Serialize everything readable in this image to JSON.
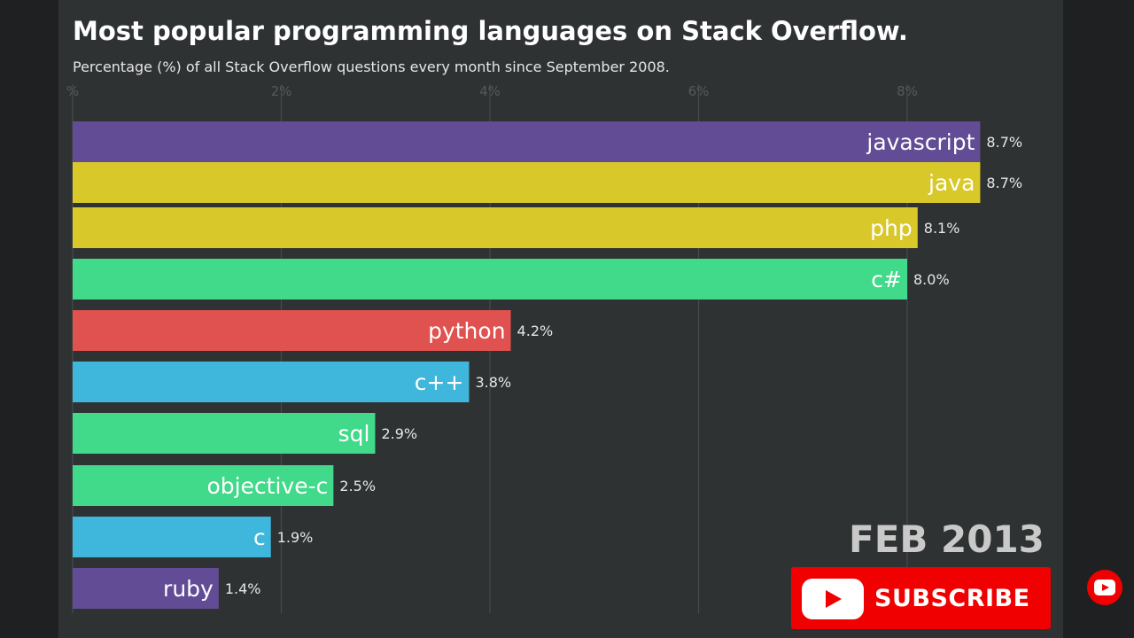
{
  "title": "Most popular programming languages on Stack Overflow.",
  "subtitle": "Percentage (%) of all Stack Overflow questions every month since September 2008.",
  "date_label": "FEB 2013",
  "subscribe": {
    "label": "SUBSCRIBE",
    "icon": "youtube-play-icon",
    "bell_icon": "youtube-icon",
    "color": "#f00000"
  },
  "chart_data": {
    "type": "bar",
    "orientation": "horizontal",
    "title": "Most popular programming languages on Stack Overflow.",
    "subtitle": "Percentage (%) of all Stack Overflow questions every month since September 2008.",
    "xlim": [
      0,
      8.7
    ],
    "xticks": [
      0,
      2,
      4,
      6,
      8
    ],
    "xtick_labels": [
      "%",
      "2%",
      "4%",
      "6%",
      "8%"
    ],
    "grid": true,
    "categories": [
      "javascript",
      "java",
      "php",
      "c#",
      "python",
      "c++",
      "sql",
      "objective-c",
      "c",
      "ruby"
    ],
    "values": [
      8.7,
      8.7,
      8.1,
      8.0,
      4.2,
      3.8,
      2.9,
      2.5,
      1.9,
      1.4
    ],
    "value_labels": [
      "8.7%",
      "8.7%",
      "8.1%",
      "8.0%",
      "4.2%",
      "3.8%",
      "2.9%",
      "2.5%",
      "1.9%",
      "1.4%"
    ],
    "colors": [
      "#634c96",
      "#d9c82a",
      "#d9c82a",
      "#41d98a",
      "#e0524f",
      "#3fb7dc",
      "#41d98a",
      "#41d98a",
      "#3fb7dc",
      "#634c96"
    ]
  }
}
